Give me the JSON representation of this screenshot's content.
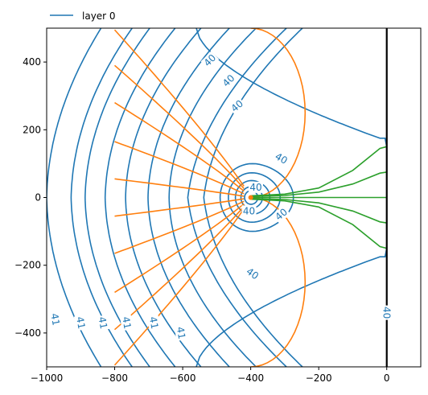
{
  "chart_data": {
    "type": "line",
    "title": "",
    "xlabel": "",
    "ylabel": "",
    "xlim": [
      -1000,
      100
    ],
    "ylim": [
      -500,
      500
    ],
    "xticks": [
      -1000,
      -800,
      -600,
      -400,
      -200,
      0
    ],
    "yticks": [
      -400,
      -200,
      0,
      200,
      400
    ],
    "grid": false,
    "legend": {
      "position": "top-left",
      "entries": [
        "layer 0"
      ]
    },
    "colors": {
      "head": "#1f77b4",
      "flow": "#ff7f0e",
      "capture": "#2ca02c",
      "boundary": "#000000"
    },
    "well": {
      "x": -400,
      "y": 0
    },
    "stream_x": 0,
    "head_contours": [
      {
        "x0": -1000,
        "r": 0
      },
      {
        "x0": -928,
        "r": 0
      },
      {
        "x0": -887,
        "r": 0
      },
      {
        "x0": -828,
        "r": 0
      },
      {
        "x0": -768,
        "r": 0
      },
      {
        "x0": -702,
        "r": 0
      },
      {
        "x0": -640,
        "r": 0
      },
      {
        "x0": -585,
        "r": 0
      },
      {
        "x0": -538,
        "r": 0
      },
      {
        "x0": -500,
        "r": 0
      },
      {
        "x0": -473,
        "r": 0
      },
      {
        "x0": -450,
        "r": 0
      },
      {
        "x0": -432,
        "r": 0
      },
      {
        "x0": -420,
        "r": 0
      }
    ],
    "flow_lines": [],
    "capture_lines": [
      {
        "points": [
          [
            -400,
            5
          ],
          [
            -300,
            10
          ],
          [
            -200,
            28
          ],
          [
            -100,
            80
          ],
          [
            -20,
            145
          ],
          [
            0,
            150
          ]
        ]
      },
      {
        "points": [
          [
            -400,
            3
          ],
          [
            -300,
            6
          ],
          [
            -200,
            16
          ],
          [
            -100,
            40
          ],
          [
            -20,
            72
          ],
          [
            0,
            75
          ]
        ]
      },
      {
        "points": [
          [
            -400,
            0
          ],
          [
            0,
            0
          ]
        ]
      },
      {
        "points": [
          [
            -400,
            -3
          ],
          [
            -300,
            -6
          ],
          [
            -200,
            -16
          ],
          [
            -100,
            -40
          ],
          [
            -20,
            -72
          ],
          [
            0,
            -75
          ]
        ]
      },
      {
        "points": [
          [
            -400,
            -5
          ],
          [
            -300,
            -10
          ],
          [
            -200,
            -28
          ],
          [
            -100,
            -80
          ],
          [
            -20,
            -145
          ],
          [
            0,
            -150
          ]
        ]
      }
    ],
    "contour_labels": [
      {
        "text": "40",
        "x": -520,
        "y": 405,
        "angle": -45
      },
      {
        "text": "40",
        "x": -465,
        "y": 345,
        "angle": -45
      },
      {
        "text": "40",
        "x": -440,
        "y": 270,
        "angle": -40
      },
      {
        "text": "40",
        "x": -310,
        "y": 115,
        "angle": 30
      },
      {
        "text": "40",
        "x": -310,
        "y": -50,
        "angle": -40
      },
      {
        "text": "40",
        "x": -395,
        "y": -225,
        "angle": 35
      },
      {
        "text": "40",
        "x": -405,
        "y": -40,
        "angle": 0
      },
      {
        "text": "40",
        "x": -385,
        "y": 30,
        "angle": 0
      },
      {
        "text": "40",
        "x": 0,
        "y": -340,
        "angle": 90
      },
      {
        "text": "41",
        "x": -975,
        "y": -360,
        "angle": 80
      },
      {
        "text": "41",
        "x": -900,
        "y": -370,
        "angle": 80
      },
      {
        "text": "41",
        "x": -835,
        "y": -370,
        "angle": 80
      },
      {
        "text": "41",
        "x": -765,
        "y": -370,
        "angle": 80
      },
      {
        "text": "41",
        "x": -685,
        "y": -370,
        "angle": 80
      },
      {
        "text": "41",
        "x": -605,
        "y": -400,
        "angle": 80
      }
    ]
  }
}
